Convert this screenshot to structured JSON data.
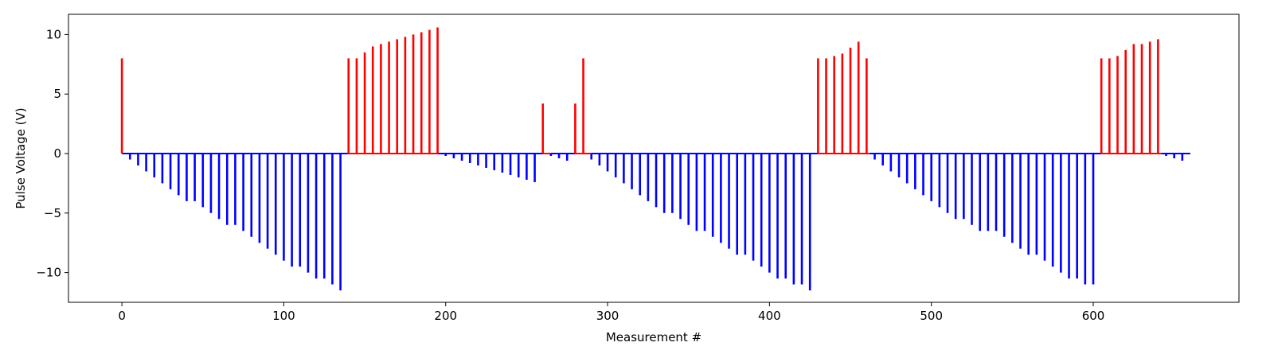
{
  "chart_data": {
    "type": "bar",
    "xlabel": "Measurement #",
    "ylabel": "Pulse Voltage (V)",
    "xlim": [
      -33,
      690
    ],
    "ylim": [
      -12.5,
      11.7
    ],
    "xticks": [
      0,
      100,
      200,
      300,
      400,
      500,
      600
    ],
    "yticks": [
      -10,
      -5,
      0,
      5,
      10
    ],
    "grid": false,
    "colors": {
      "positive": "#ff0000",
      "negative": "#0000ff"
    },
    "positive_pulses": {
      "x": [
        0,
        140,
        145,
        150,
        155,
        160,
        165,
        170,
        175,
        180,
        185,
        190,
        195,
        260,
        280,
        285,
        430,
        435,
        440,
        445,
        450,
        455,
        460,
        605,
        610,
        615,
        620,
        625,
        630,
        635,
        640
      ],
      "values": [
        8,
        8,
        8,
        8.5,
        9,
        9.2,
        9.4,
        9.6,
        9.8,
        10,
        10.2,
        10.4,
        10.6,
        4.2,
        4.2,
        8,
        8,
        8,
        8.2,
        8.4,
        8.9,
        9.4,
        8,
        8,
        8,
        8.2,
        8.7,
        9.2,
        9.2,
        9.4,
        9.6
      ]
    },
    "negative_pulses": {
      "x": [
        5,
        10,
        15,
        20,
        25,
        30,
        35,
        40,
        45,
        50,
        55,
        60,
        65,
        70,
        75,
        80,
        85,
        90,
        95,
        100,
        105,
        110,
        115,
        120,
        125,
        130,
        135,
        200,
        205,
        210,
        215,
        220,
        225,
        230,
        235,
        240,
        245,
        250,
        255,
        265,
        270,
        275,
        290,
        295,
        300,
        305,
        310,
        315,
        320,
        325,
        330,
        335,
        340,
        345,
        350,
        355,
        360,
        365,
        370,
        375,
        380,
        385,
        390,
        395,
        400,
        405,
        410,
        415,
        420,
        425,
        465,
        470,
        475,
        480,
        485,
        490,
        495,
        500,
        505,
        510,
        515,
        520,
        525,
        530,
        535,
        540,
        545,
        550,
        555,
        560,
        565,
        570,
        575,
        580,
        585,
        590,
        595,
        600,
        645,
        650,
        655
      ],
      "values": [
        -0.5,
        -1,
        -1.5,
        -2,
        -2.5,
        -3,
        -3.5,
        -4,
        -4,
        -4.5,
        -5,
        -5.5,
        -6,
        -6,
        -6.5,
        -7,
        -7.5,
        -8,
        -8.5,
        -9,
        -9.5,
        -9.5,
        -10,
        -10.5,
        -10.5,
        -11,
        -11.5,
        -0.2,
        -0.4,
        -0.6,
        -0.8,
        -1,
        -1.2,
        -1.4,
        -1.6,
        -1.8,
        -2,
        -2.2,
        -2.4,
        -0.2,
        -0.4,
        -0.6,
        -0.5,
        -1,
        -1.5,
        -2,
        -2.5,
        -3,
        -3.5,
        -4,
        -4.5,
        -5,
        -5,
        -5.5,
        -6,
        -6.5,
        -6.5,
        -7,
        -7.5,
        -8,
        -8.5,
        -8.5,
        -9,
        -9.5,
        -10,
        -10.5,
        -10.5,
        -11,
        -11,
        -11.5,
        -0.5,
        -1,
        -1.5,
        -2,
        -2.5,
        -3,
        -3.5,
        -4,
        -4.5,
        -5,
        -5.5,
        -5.5,
        -6,
        -6.5,
        -6.5,
        -6.5,
        -7,
        -7.5,
        -8,
        -8.5,
        -8.5,
        -9,
        -9.5,
        -10,
        -10.5,
        -10.5,
        -11,
        -11,
        -0.2,
        -0.4,
        -0.6
      ]
    },
    "baseline_segments": [
      {
        "from": 0,
        "to": 140,
        "color": "#0000ff"
      },
      {
        "from": 140,
        "to": 195,
        "color": "#ff0000"
      },
      {
        "from": 195,
        "to": 260,
        "color": "#0000ff"
      },
      {
        "from": 260,
        "to": 265,
        "color": "#ff0000"
      },
      {
        "from": 265,
        "to": 280,
        "color": "#0000ff"
      },
      {
        "from": 280,
        "to": 290,
        "color": "#ff0000"
      },
      {
        "from": 290,
        "to": 430,
        "color": "#0000ff"
      },
      {
        "from": 430,
        "to": 462,
        "color": "#ff0000"
      },
      {
        "from": 462,
        "to": 605,
        "color": "#0000ff"
      },
      {
        "from": 605,
        "to": 642,
        "color": "#ff0000"
      },
      {
        "from": 642,
        "to": 660,
        "color": "#0000ff"
      }
    ]
  }
}
